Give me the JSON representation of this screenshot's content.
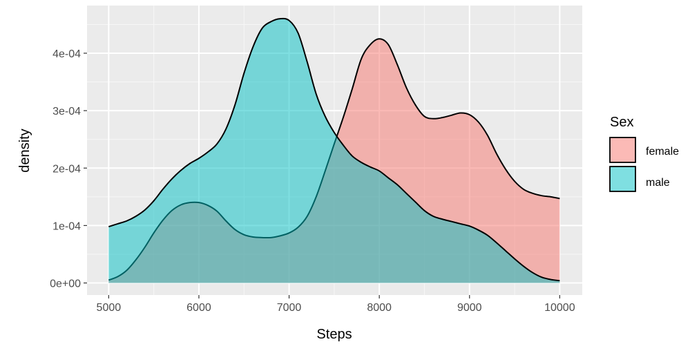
{
  "chart_data": {
    "type": "area",
    "subtype": "density",
    "title": "",
    "xlabel": "Steps",
    "ylabel": "density",
    "xlim": [
      4760,
      10250
    ],
    "ylim": [
      -2.1e-05,
      0.000483
    ],
    "x_ticks": [
      5000,
      6000,
      7000,
      8000,
      9000,
      10000
    ],
    "x_tick_labels": [
      "5000",
      "6000",
      "7000",
      "8000",
      "9000",
      "10000"
    ],
    "y_ticks": [
      0,
      0.0001,
      0.0002,
      0.0003,
      0.0004
    ],
    "y_tick_labels": [
      "0e+00",
      "1e-04",
      "2e-04",
      "3e-04",
      "4e-04"
    ],
    "grid": true,
    "legend": {
      "title": "Sex",
      "position": "right"
    },
    "series": [
      {
        "name": "female",
        "color": "#F8766D",
        "opacity": 0.5,
        "x": [
          5000,
          5100,
          5200,
          5300,
          5400,
          5500,
          5600,
          5700,
          5800,
          5900,
          6000,
          6100,
          6200,
          6300,
          6400,
          6500,
          6600,
          6700,
          6800,
          6900,
          7000,
          7100,
          7200,
          7300,
          7400,
          7500,
          7600,
          7700,
          7800,
          7900,
          8000,
          8100,
          8200,
          8300,
          8400,
          8500,
          8600,
          8700,
          8800,
          8900,
          9000,
          9100,
          9200,
          9300,
          9400,
          9500,
          9600,
          9700,
          9800,
          9900,
          10000
        ],
        "values": [
          5e-06,
          1.1e-05,
          2.2e-05,
          4e-05,
          6.2e-05,
          8.7e-05,
          0.000109,
          0.000126,
          0.000136,
          0.00014,
          0.00014,
          0.000135,
          0.000125,
          0.000108,
          9.3e-05,
          8.4e-05,
          8e-05,
          7.9e-05,
          7.9e-05,
          8.2e-05,
          8.7e-05,
          9.7e-05,
          0.000116,
          0.00015,
          0.000195,
          0.000242,
          0.000288,
          0.000338,
          0.00039,
          0.000415,
          0.000425,
          0.000415,
          0.00038,
          0.00034,
          0.00031,
          0.00029,
          0.000286,
          0.000288,
          0.000292,
          0.000296,
          0.000293,
          0.00028,
          0.000257,
          0.000225,
          0.000198,
          0.000177,
          0.000163,
          0.000156,
          0.000152,
          0.00015,
          0.000147
        ]
      },
      {
        "name": "male",
        "color": "#00BFC4",
        "opacity": 0.5,
        "x": [
          5000,
          5100,
          5200,
          5300,
          5400,
          5500,
          5600,
          5700,
          5800,
          5900,
          6000,
          6100,
          6200,
          6300,
          6400,
          6500,
          6600,
          6700,
          6800,
          6900,
          7000,
          7100,
          7200,
          7300,
          7400,
          7500,
          7600,
          7700,
          7800,
          7900,
          8000,
          8100,
          8200,
          8300,
          8400,
          8500,
          8600,
          8700,
          8800,
          8900,
          9000,
          9100,
          9200,
          9300,
          9400,
          9500,
          9600,
          9700,
          9800,
          9900,
          10000
        ],
        "values": [
          9.8e-05,
          0.000103,
          0.000108,
          0.000116,
          0.000127,
          0.000143,
          0.000163,
          0.000181,
          0.000196,
          0.000208,
          0.000217,
          0.000228,
          0.000242,
          0.000268,
          0.00031,
          0.000365,
          0.000411,
          0.000443,
          0.000455,
          0.00046,
          0.000457,
          0.000435,
          0.000385,
          0.000329,
          0.00029,
          0.000262,
          0.00024,
          0.000221,
          0.00021,
          0.000202,
          0.000195,
          0.000183,
          0.000171,
          0.000156,
          0.000141,
          0.000126,
          0.000116,
          0.000111,
          0.000107,
          0.000103,
          9.9e-05,
          9.2e-05,
          8.3e-05,
          7e-05,
          5.6e-05,
          4.2e-05,
          2.9e-05,
          1.8e-05,
          1e-05,
          6e-06,
          4e-06
        ]
      }
    ]
  }
}
